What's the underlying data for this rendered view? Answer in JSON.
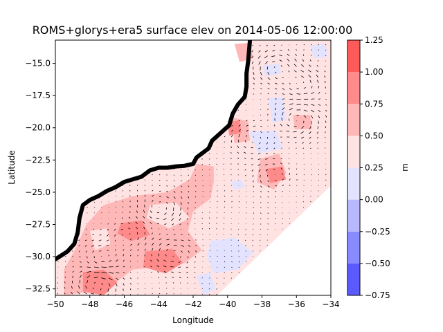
{
  "chart_data": {
    "type": "heatmap",
    "title": "ROMS+glorys+era5 surface elev on 2014-05-06 12:00:00",
    "xlabel": "Longitude",
    "ylabel": "Latitude",
    "xlim": [
      -50,
      -34
    ],
    "ylim": [
      -33,
      -13.2
    ],
    "xticks": [
      "−50",
      "−48",
      "−46",
      "−44",
      "−42",
      "−40",
      "−38",
      "−36",
      "−34"
    ],
    "yticks": [
      "−15.0",
      "−17.5",
      "−20.0",
      "−22.5",
      "−25.0",
      "−27.5",
      "−30.0",
      "−32.5"
    ],
    "colorbar": {
      "label": "m",
      "levels": [
        -0.75,
        -0.5,
        -0.25,
        0.0,
        0.25,
        0.5,
        0.75,
        1.0,
        1.25
      ],
      "level_labels": [
        "−0.75",
        "−0.50",
        "−0.25",
        "0.00",
        "0.25",
        "0.50",
        "0.75",
        "1.00",
        "1.25"
      ],
      "colors": [
        "#5a5aff",
        "#8a8aff",
        "#b8b8ff",
        "#e3e3ff",
        "#ffe3e3",
        "#ffb8b8",
        "#ff8a8a",
        "#ff5a5a"
      ]
    },
    "coastline": [
      [
        -50,
        -30.2
      ],
      [
        -49.3,
        -29.6
      ],
      [
        -48.9,
        -29.0
      ],
      [
        -48.7,
        -28.1
      ],
      [
        -48.6,
        -27.0
      ],
      [
        -48.4,
        -26.0
      ],
      [
        -48.0,
        -25.6
      ],
      [
        -47.5,
        -25.3
      ],
      [
        -47.0,
        -24.9
      ],
      [
        -46.5,
        -24.6
      ],
      [
        -46.0,
        -24.2
      ],
      [
        -45.5,
        -24.0
      ],
      [
        -45.0,
        -23.8
      ],
      [
        -44.5,
        -23.3
      ],
      [
        -44.0,
        -23.1
      ],
      [
        -43.5,
        -23.1
      ],
      [
        -43.0,
        -23.0
      ],
      [
        -42.5,
        -22.95
      ],
      [
        -42.0,
        -22.8
      ],
      [
        -41.8,
        -22.3
      ],
      [
        -41.1,
        -21.6
      ],
      [
        -40.9,
        -21.0
      ],
      [
        -40.4,
        -20.4
      ],
      [
        -39.9,
        -19.8
      ],
      [
        -39.7,
        -18.9
      ],
      [
        -39.4,
        -18.2
      ],
      [
        -39.0,
        -17.6
      ],
      [
        -38.9,
        -16.8
      ],
      [
        -38.9,
        -15.8
      ],
      [
        -38.8,
        -14.8
      ],
      [
        -38.7,
        -13.2
      ]
    ],
    "domain_edge": [
      [
        -40.6,
        -33
      ],
      [
        -34,
        -24.5
      ]
    ],
    "regions": [
      {
        "level": 0.625,
        "points": [
          [
            -49.5,
            -33
          ],
          [
            -47,
            -32.5
          ],
          [
            -45.5,
            -31.0
          ],
          [
            -44.0,
            -30.8
          ],
          [
            -42.5,
            -30.5
          ],
          [
            -41.5,
            -29.5
          ],
          [
            -42.3,
            -28.0
          ],
          [
            -42.0,
            -26.5
          ],
          [
            -41.0,
            -25.5
          ],
          [
            -40.8,
            -24.2
          ],
          [
            -40.8,
            -23.0
          ],
          [
            -41.8,
            -22.8
          ],
          [
            -42.2,
            -24.0
          ],
          [
            -43.5,
            -25.0
          ],
          [
            -45.5,
            -25.3
          ],
          [
            -47.2,
            -26.0
          ],
          [
            -48.2,
            -27.5
          ],
          [
            -48.8,
            -29.3
          ],
          [
            -49.5,
            -31.0
          ]
        ]
      },
      {
        "level": 0.625,
        "points": [
          [
            -39.7,
            -19.2
          ],
          [
            -38.8,
            -19.5
          ],
          [
            -38.7,
            -21.0
          ],
          [
            -39.6,
            -21.2
          ]
        ]
      },
      {
        "level": 0.625,
        "points": [
          [
            -38.1,
            -22.4
          ],
          [
            -37.0,
            -22.0
          ],
          [
            -36.6,
            -23.5
          ],
          [
            -37.3,
            -24.8
          ],
          [
            -38.3,
            -24.2
          ]
        ]
      },
      {
        "level": 0.625,
        "points": [
          [
            -36.2,
            -19.0
          ],
          [
            -35.2,
            -19.0
          ],
          [
            -35.1,
            -20.1
          ],
          [
            -36.1,
            -20.1
          ]
        ]
      },
      {
        "level": 0.625,
        "points": [
          [
            -39.6,
            -13.5
          ],
          [
            -38.7,
            -13.4
          ],
          [
            -38.5,
            -14.6
          ],
          [
            -39.3,
            -14.9
          ]
        ]
      },
      {
        "level": 0.875,
        "points": [
          [
            -48.4,
            -31.2
          ],
          [
            -47.2,
            -31.0
          ],
          [
            -46.4,
            -32.0
          ],
          [
            -47.2,
            -33.0
          ],
          [
            -48.4,
            -32.7
          ]
        ]
      },
      {
        "level": 0.875,
        "points": [
          [
            -44.8,
            -29.6
          ],
          [
            -43.2,
            -29.4
          ],
          [
            -42.6,
            -30.5
          ],
          [
            -43.6,
            -31.3
          ],
          [
            -44.9,
            -30.8
          ]
        ]
      },
      {
        "level": 0.875,
        "points": [
          [
            -46.2,
            -27.4
          ],
          [
            -45.0,
            -27.2
          ],
          [
            -44.5,
            -28.3
          ],
          [
            -45.6,
            -28.8
          ],
          [
            -46.4,
            -28.2
          ]
        ]
      },
      {
        "level": 0.875,
        "points": [
          [
            -40.0,
            -19.6
          ],
          [
            -39.3,
            -19.4
          ],
          [
            -39.2,
            -20.4
          ],
          [
            -39.9,
            -20.6
          ]
        ]
      },
      {
        "level": 0.875,
        "points": [
          [
            -37.8,
            -23.2
          ],
          [
            -36.8,
            -23.0
          ],
          [
            -36.6,
            -24.0
          ],
          [
            -37.5,
            -24.3
          ]
        ]
      },
      {
        "level": 0.375,
        "points": [
          [
            -44.5,
            -26.0
          ],
          [
            -43.0,
            -25.8
          ],
          [
            -42.2,
            -27.0
          ],
          [
            -43.4,
            -27.8
          ],
          [
            -44.7,
            -27.0
          ]
        ]
      },
      {
        "level": 0.375,
        "points": [
          [
            -48.0,
            -28.0
          ],
          [
            -47.0,
            -27.8
          ],
          [
            -46.8,
            -29.0
          ],
          [
            -47.7,
            -29.5
          ]
        ]
      },
      {
        "level": 0.125,
        "points": [
          [
            -41.0,
            -28.8
          ],
          [
            -39.6,
            -28.5
          ],
          [
            -38.5,
            -29.7
          ],
          [
            -39.4,
            -31.0
          ],
          [
            -40.8,
            -31.3
          ],
          [
            -41.2,
            -30.0
          ]
        ]
      },
      {
        "level": 0.125,
        "points": [
          [
            -41.8,
            -31.5
          ],
          [
            -41.0,
            -31.2
          ],
          [
            -40.7,
            -32.5
          ],
          [
            -41.4,
            -33.0
          ]
        ]
      },
      {
        "level": 0.125,
        "points": [
          [
            -38.8,
            -20.3
          ],
          [
            -37.2,
            -20.2
          ],
          [
            -36.8,
            -21.6
          ],
          [
            -38.2,
            -22.0
          ]
        ]
      },
      {
        "level": 0.125,
        "points": [
          [
            -37.6,
            -17.7
          ],
          [
            -36.8,
            -17.6
          ],
          [
            -36.6,
            -19.4
          ],
          [
            -37.4,
            -19.6
          ]
        ]
      },
      {
        "level": 0.125,
        "points": [
          [
            -38.0,
            -15.2
          ],
          [
            -37.0,
            -15.0
          ],
          [
            -36.9,
            -15.8
          ],
          [
            -37.8,
            -16.0
          ]
        ]
      },
      {
        "level": 0.125,
        "points": [
          [
            -35.2,
            -13.6
          ],
          [
            -34.3,
            -13.5
          ],
          [
            -34.2,
            -14.5
          ],
          [
            -35.0,
            -14.6
          ]
        ]
      },
      {
        "level": 0.125,
        "points": [
          [
            -39.8,
            -24.2
          ],
          [
            -39.2,
            -24.0
          ],
          [
            -39.0,
            -24.6
          ],
          [
            -39.6,
            -24.8
          ]
        ]
      }
    ],
    "eddies": [
      [
        -36.0,
        -19.4
      ],
      [
        -37.2,
        -15.2
      ],
      [
        -38.6,
        -20.8
      ],
      [
        -37.4,
        -23.6
      ],
      [
        -43.8,
        -26.3
      ],
      [
        -45.8,
        -28.4
      ],
      [
        -47.6,
        -32.2
      ],
      [
        -47.2,
        -30.0
      ],
      [
        -43.2,
        -29.8
      ],
      [
        -35.6,
        -16.6
      ]
    ]
  }
}
